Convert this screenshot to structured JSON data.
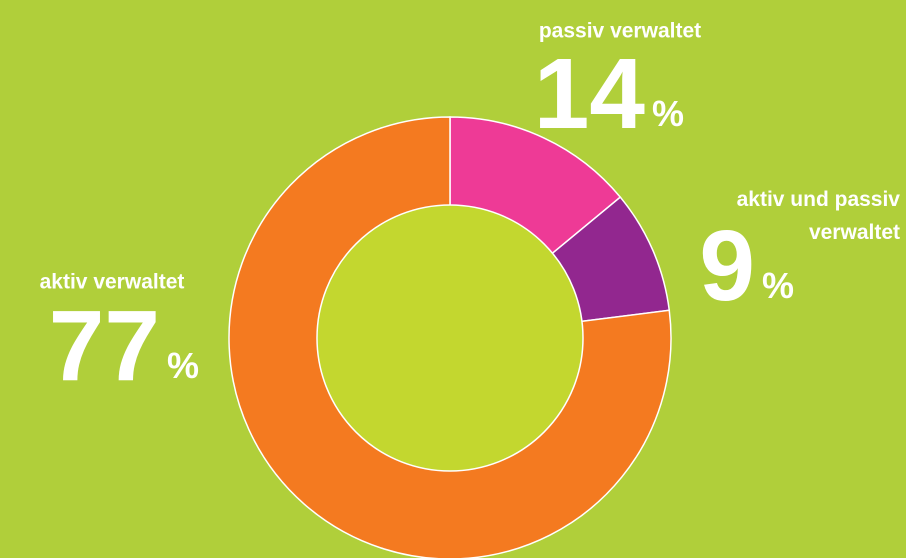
{
  "chart_data": {
    "type": "donut",
    "categories": [
      "passiv verwaltet",
      "aktiv und passiv verwaltet",
      "aktiv verwaltet"
    ],
    "values": [
      14,
      9,
      77
    ],
    "unit": "%",
    "colors": [
      "#ee3a96",
      "#92278f",
      "#f47a20"
    ],
    "hole_color": "#c3d72f"
  }
}
